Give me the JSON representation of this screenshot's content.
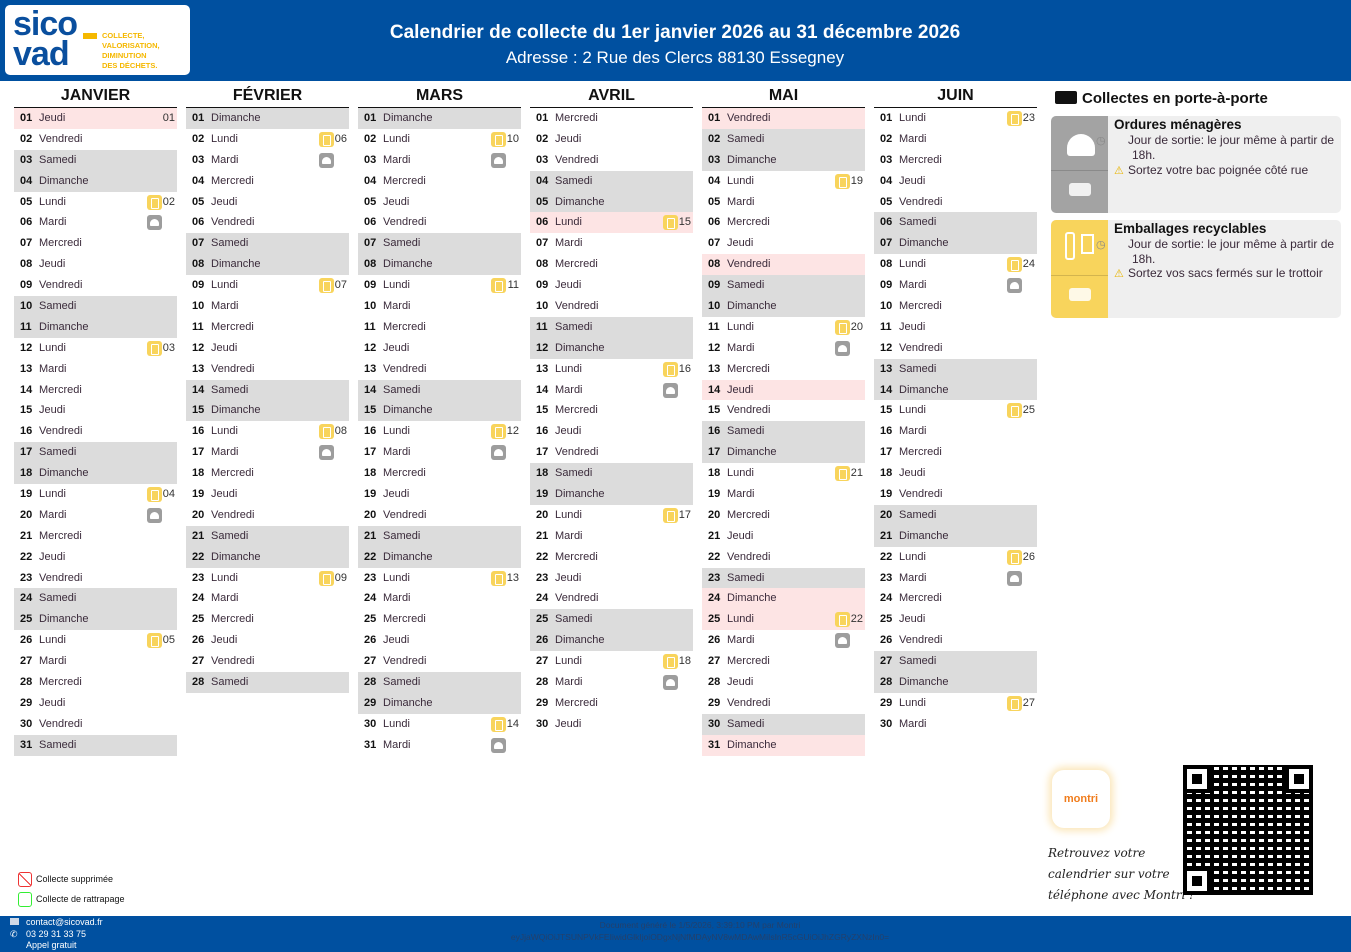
{
  "header": {
    "logo_text": "sicovad",
    "logo_tagline": [
      "COLLECTE,",
      "VALORISATION,",
      "DIMINUTION",
      "DES DÉCHETS."
    ],
    "title": "Calendrier de collecte du 1er janvier 2026 au 31 décembre 2026",
    "address": "Adresse : 2 Rue des Clercs 88130 Essegney"
  },
  "colors": {
    "brand_blue": "#0050a0",
    "weekend": "#dcdcdc",
    "holiday": "#fde4e4",
    "recycling": "#f8d45c",
    "household": "#9d9d9d"
  },
  "legend_icons": {
    "y": "recycling-bag-icon",
    "g": "household-waste-bell-icon"
  },
  "months": [
    {
      "name": "JANVIER",
      "days": [
        {
          "d": "01",
          "n": "Jeudi",
          "k": "holiday",
          "wk": "01"
        },
        {
          "d": "02",
          "n": "Vendredi"
        },
        {
          "d": "03",
          "n": "Samedi",
          "k": "weekend"
        },
        {
          "d": "04",
          "n": "Dimanche",
          "k": "weekend"
        },
        {
          "d": "05",
          "n": "Lundi",
          "y": true,
          "wk": "02"
        },
        {
          "d": "06",
          "n": "Mardi",
          "g": true
        },
        {
          "d": "07",
          "n": "Mercredi"
        },
        {
          "d": "08",
          "n": "Jeudi"
        },
        {
          "d": "09",
          "n": "Vendredi"
        },
        {
          "d": "10",
          "n": "Samedi",
          "k": "weekend"
        },
        {
          "d": "11",
          "n": "Dimanche",
          "k": "weekend"
        },
        {
          "d": "12",
          "n": "Lundi",
          "y": true,
          "wk": "03"
        },
        {
          "d": "13",
          "n": "Mardi"
        },
        {
          "d": "14",
          "n": "Mercredi"
        },
        {
          "d": "15",
          "n": "Jeudi"
        },
        {
          "d": "16",
          "n": "Vendredi"
        },
        {
          "d": "17",
          "n": "Samedi",
          "k": "weekend"
        },
        {
          "d": "18",
          "n": "Dimanche",
          "k": "weekend"
        },
        {
          "d": "19",
          "n": "Lundi",
          "y": true,
          "wk": "04"
        },
        {
          "d": "20",
          "n": "Mardi",
          "g": true
        },
        {
          "d": "21",
          "n": "Mercredi"
        },
        {
          "d": "22",
          "n": "Jeudi"
        },
        {
          "d": "23",
          "n": "Vendredi"
        },
        {
          "d": "24",
          "n": "Samedi",
          "k": "weekend"
        },
        {
          "d": "25",
          "n": "Dimanche",
          "k": "weekend"
        },
        {
          "d": "26",
          "n": "Lundi",
          "y": true,
          "wk": "05"
        },
        {
          "d": "27",
          "n": "Mardi"
        },
        {
          "d": "28",
          "n": "Mercredi"
        },
        {
          "d": "29",
          "n": "Jeudi"
        },
        {
          "d": "30",
          "n": "Vendredi"
        },
        {
          "d": "31",
          "n": "Samedi",
          "k": "weekend"
        }
      ]
    },
    {
      "name": "FÉVRIER",
      "days": [
        {
          "d": "01",
          "n": "Dimanche",
          "k": "weekend"
        },
        {
          "d": "02",
          "n": "Lundi",
          "y": true,
          "wk": "06"
        },
        {
          "d": "03",
          "n": "Mardi",
          "g": true
        },
        {
          "d": "04",
          "n": "Mercredi"
        },
        {
          "d": "05",
          "n": "Jeudi"
        },
        {
          "d": "06",
          "n": "Vendredi"
        },
        {
          "d": "07",
          "n": "Samedi",
          "k": "weekend"
        },
        {
          "d": "08",
          "n": "Dimanche",
          "k": "weekend"
        },
        {
          "d": "09",
          "n": "Lundi",
          "y": true,
          "wk": "07"
        },
        {
          "d": "10",
          "n": "Mardi"
        },
        {
          "d": "11",
          "n": "Mercredi"
        },
        {
          "d": "12",
          "n": "Jeudi"
        },
        {
          "d": "13",
          "n": "Vendredi"
        },
        {
          "d": "14",
          "n": "Samedi",
          "k": "weekend"
        },
        {
          "d": "15",
          "n": "Dimanche",
          "k": "weekend"
        },
        {
          "d": "16",
          "n": "Lundi",
          "y": true,
          "wk": "08"
        },
        {
          "d": "17",
          "n": "Mardi",
          "g": true
        },
        {
          "d": "18",
          "n": "Mercredi"
        },
        {
          "d": "19",
          "n": "Jeudi"
        },
        {
          "d": "20",
          "n": "Vendredi"
        },
        {
          "d": "21",
          "n": "Samedi",
          "k": "weekend"
        },
        {
          "d": "22",
          "n": "Dimanche",
          "k": "weekend"
        },
        {
          "d": "23",
          "n": "Lundi",
          "y": true,
          "wk": "09"
        },
        {
          "d": "24",
          "n": "Mardi"
        },
        {
          "d": "25",
          "n": "Mercredi"
        },
        {
          "d": "26",
          "n": "Jeudi"
        },
        {
          "d": "27",
          "n": "Vendredi"
        },
        {
          "d": "28",
          "n": "Samedi",
          "k": "weekend"
        }
      ]
    },
    {
      "name": "MARS",
      "days": [
        {
          "d": "01",
          "n": "Dimanche",
          "k": "weekend"
        },
        {
          "d": "02",
          "n": "Lundi",
          "y": true,
          "wk": "10"
        },
        {
          "d": "03",
          "n": "Mardi",
          "g": true
        },
        {
          "d": "04",
          "n": "Mercredi"
        },
        {
          "d": "05",
          "n": "Jeudi"
        },
        {
          "d": "06",
          "n": "Vendredi"
        },
        {
          "d": "07",
          "n": "Samedi",
          "k": "weekend"
        },
        {
          "d": "08",
          "n": "Dimanche",
          "k": "weekend"
        },
        {
          "d": "09",
          "n": "Lundi",
          "y": true,
          "wk": "11"
        },
        {
          "d": "10",
          "n": "Mardi"
        },
        {
          "d": "11",
          "n": "Mercredi"
        },
        {
          "d": "12",
          "n": "Jeudi"
        },
        {
          "d": "13",
          "n": "Vendredi"
        },
        {
          "d": "14",
          "n": "Samedi",
          "k": "weekend"
        },
        {
          "d": "15",
          "n": "Dimanche",
          "k": "weekend"
        },
        {
          "d": "16",
          "n": "Lundi",
          "y": true,
          "wk": "12"
        },
        {
          "d": "17",
          "n": "Mardi",
          "g": true
        },
        {
          "d": "18",
          "n": "Mercredi"
        },
        {
          "d": "19",
          "n": "Jeudi"
        },
        {
          "d": "20",
          "n": "Vendredi"
        },
        {
          "d": "21",
          "n": "Samedi",
          "k": "weekend"
        },
        {
          "d": "22",
          "n": "Dimanche",
          "k": "weekend"
        },
        {
          "d": "23",
          "n": "Lundi",
          "y": true,
          "wk": "13"
        },
        {
          "d": "24",
          "n": "Mardi"
        },
        {
          "d": "25",
          "n": "Mercredi"
        },
        {
          "d": "26",
          "n": "Jeudi"
        },
        {
          "d": "27",
          "n": "Vendredi"
        },
        {
          "d": "28",
          "n": "Samedi",
          "k": "weekend"
        },
        {
          "d": "29",
          "n": "Dimanche",
          "k": "weekend"
        },
        {
          "d": "30",
          "n": "Lundi",
          "y": true,
          "wk": "14"
        },
        {
          "d": "31",
          "n": "Mardi",
          "g": true
        }
      ]
    },
    {
      "name": "AVRIL",
      "days": [
        {
          "d": "01",
          "n": "Mercredi"
        },
        {
          "d": "02",
          "n": "Jeudi"
        },
        {
          "d": "03",
          "n": "Vendredi"
        },
        {
          "d": "04",
          "n": "Samedi",
          "k": "weekend"
        },
        {
          "d": "05",
          "n": "Dimanche",
          "k": "weekend"
        },
        {
          "d": "06",
          "n": "Lundi",
          "k": "holiday",
          "y": true,
          "wk": "15"
        },
        {
          "d": "07",
          "n": "Mardi"
        },
        {
          "d": "08",
          "n": "Mercredi"
        },
        {
          "d": "09",
          "n": "Jeudi"
        },
        {
          "d": "10",
          "n": "Vendredi"
        },
        {
          "d": "11",
          "n": "Samedi",
          "k": "weekend"
        },
        {
          "d": "12",
          "n": "Dimanche",
          "k": "weekend"
        },
        {
          "d": "13",
          "n": "Lundi",
          "y": true,
          "wk": "16"
        },
        {
          "d": "14",
          "n": "Mardi",
          "g": true
        },
        {
          "d": "15",
          "n": "Mercredi"
        },
        {
          "d": "16",
          "n": "Jeudi"
        },
        {
          "d": "17",
          "n": "Vendredi"
        },
        {
          "d": "18",
          "n": "Samedi",
          "k": "weekend"
        },
        {
          "d": "19",
          "n": "Dimanche",
          "k": "weekend"
        },
        {
          "d": "20",
          "n": "Lundi",
          "y": true,
          "wk": "17"
        },
        {
          "d": "21",
          "n": "Mardi"
        },
        {
          "d": "22",
          "n": "Mercredi"
        },
        {
          "d": "23",
          "n": "Jeudi"
        },
        {
          "d": "24",
          "n": "Vendredi"
        },
        {
          "d": "25",
          "n": "Samedi",
          "k": "weekend"
        },
        {
          "d": "26",
          "n": "Dimanche",
          "k": "weekend"
        },
        {
          "d": "27",
          "n": "Lundi",
          "y": true,
          "wk": "18"
        },
        {
          "d": "28",
          "n": "Mardi",
          "g": true
        },
        {
          "d": "29",
          "n": "Mercredi"
        },
        {
          "d": "30",
          "n": "Jeudi"
        }
      ]
    },
    {
      "name": "MAI",
      "days": [
        {
          "d": "01",
          "n": "Vendredi",
          "k": "holiday"
        },
        {
          "d": "02",
          "n": "Samedi",
          "k": "weekend"
        },
        {
          "d": "03",
          "n": "Dimanche",
          "k": "weekend"
        },
        {
          "d": "04",
          "n": "Lundi",
          "y": true,
          "wk": "19"
        },
        {
          "d": "05",
          "n": "Mardi"
        },
        {
          "d": "06",
          "n": "Mercredi"
        },
        {
          "d": "07",
          "n": "Jeudi"
        },
        {
          "d": "08",
          "n": "Vendredi",
          "k": "holiday"
        },
        {
          "d": "09",
          "n": "Samedi",
          "k": "weekend"
        },
        {
          "d": "10",
          "n": "Dimanche",
          "k": "weekend"
        },
        {
          "d": "11",
          "n": "Lundi",
          "y": true,
          "wk": "20"
        },
        {
          "d": "12",
          "n": "Mardi",
          "g": true
        },
        {
          "d": "13",
          "n": "Mercredi"
        },
        {
          "d": "14",
          "n": "Jeudi",
          "k": "holiday"
        },
        {
          "d": "15",
          "n": "Vendredi"
        },
        {
          "d": "16",
          "n": "Samedi",
          "k": "weekend"
        },
        {
          "d": "17",
          "n": "Dimanche",
          "k": "weekend"
        },
        {
          "d": "18",
          "n": "Lundi",
          "y": true,
          "wk": "21"
        },
        {
          "d": "19",
          "n": "Mardi"
        },
        {
          "d": "20",
          "n": "Mercredi"
        },
        {
          "d": "21",
          "n": "Jeudi"
        },
        {
          "d": "22",
          "n": "Vendredi"
        },
        {
          "d": "23",
          "n": "Samedi",
          "k": "weekend"
        },
        {
          "d": "24",
          "n": "Dimanche",
          "k": "holiday"
        },
        {
          "d": "25",
          "n": "Lundi",
          "k": "holiday",
          "y": true,
          "wk": "22"
        },
        {
          "d": "26",
          "n": "Mardi",
          "g": true
        },
        {
          "d": "27",
          "n": "Mercredi"
        },
        {
          "d": "28",
          "n": "Jeudi"
        },
        {
          "d": "29",
          "n": "Vendredi"
        },
        {
          "d": "30",
          "n": "Samedi",
          "k": "weekend"
        },
        {
          "d": "31",
          "n": "Dimanche",
          "k": "holiday"
        }
      ]
    },
    {
      "name": "JUIN",
      "days": [
        {
          "d": "01",
          "n": "Lundi",
          "y": true,
          "wk": "23"
        },
        {
          "d": "02",
          "n": "Mardi"
        },
        {
          "d": "03",
          "n": "Mercredi"
        },
        {
          "d": "04",
          "n": "Jeudi"
        },
        {
          "d": "05",
          "n": "Vendredi"
        },
        {
          "d": "06",
          "n": "Samedi",
          "k": "weekend"
        },
        {
          "d": "07",
          "n": "Dimanche",
          "k": "weekend"
        },
        {
          "d": "08",
          "n": "Lundi",
          "y": true,
          "wk": "24"
        },
        {
          "d": "09",
          "n": "Mardi",
          "g": true
        },
        {
          "d": "10",
          "n": "Mercredi"
        },
        {
          "d": "11",
          "n": "Jeudi"
        },
        {
          "d": "12",
          "n": "Vendredi"
        },
        {
          "d": "13",
          "n": "Samedi",
          "k": "weekend"
        },
        {
          "d": "14",
          "n": "Dimanche",
          "k": "weekend"
        },
        {
          "d": "15",
          "n": "Lundi",
          "y": true,
          "wk": "25"
        },
        {
          "d": "16",
          "n": "Mardi"
        },
        {
          "d": "17",
          "n": "Mercredi"
        },
        {
          "d": "18",
          "n": "Jeudi"
        },
        {
          "d": "19",
          "n": "Vendredi"
        },
        {
          "d": "20",
          "n": "Samedi",
          "k": "weekend"
        },
        {
          "d": "21",
          "n": "Dimanche",
          "k": "weekend"
        },
        {
          "d": "22",
          "n": "Lundi",
          "y": true,
          "wk": "26"
        },
        {
          "d": "23",
          "n": "Mardi",
          "g": true
        },
        {
          "d": "24",
          "n": "Mercredi"
        },
        {
          "d": "25",
          "n": "Jeudi"
        },
        {
          "d": "26",
          "n": "Vendredi"
        },
        {
          "d": "27",
          "n": "Samedi",
          "k": "weekend"
        },
        {
          "d": "28",
          "n": "Dimanche",
          "k": "weekend"
        },
        {
          "d": "29",
          "n": "Lundi",
          "y": true,
          "wk": "27"
        },
        {
          "d": "30",
          "n": "Mardi"
        }
      ]
    }
  ],
  "side": {
    "title": "Collectes en porte-à-porte",
    "cards": [
      {
        "title": "Ordures ménagères",
        "line1": "Jour de sortie: le jour même à partir de 18h.",
        "line2": "Sortez votre bac poignée côté rue"
      },
      {
        "title": "Emballages recyclables",
        "line1": "Jour de sortie: le jour même à partir de 18h.",
        "line2": "Sortez vos sacs fermés sur le trottoir"
      }
    ]
  },
  "legend": {
    "cancelled": "Collecte supprimée",
    "catchup": "Collecte de rattrapage"
  },
  "montri": {
    "logo": "montri",
    "text1": "Retrouvez votre",
    "text2": "calendrier sur votre",
    "text3": "téléphone avec Montri !"
  },
  "footer": {
    "email": "contact@sicovad.fr",
    "phone": "03 29 31 33 75",
    "phone_note": "Appel gratuit",
    "generated": "Document généré le 1/5/2026, 3:39:10 PM par Montri",
    "code": "eyJjaWQiOiJTSUNPVkFEIiwidGlkIjoiODgxNjNfMDAyNV8wMDAwMiIsInR5cGUiOiJhZGRyZXNzIn0="
  }
}
